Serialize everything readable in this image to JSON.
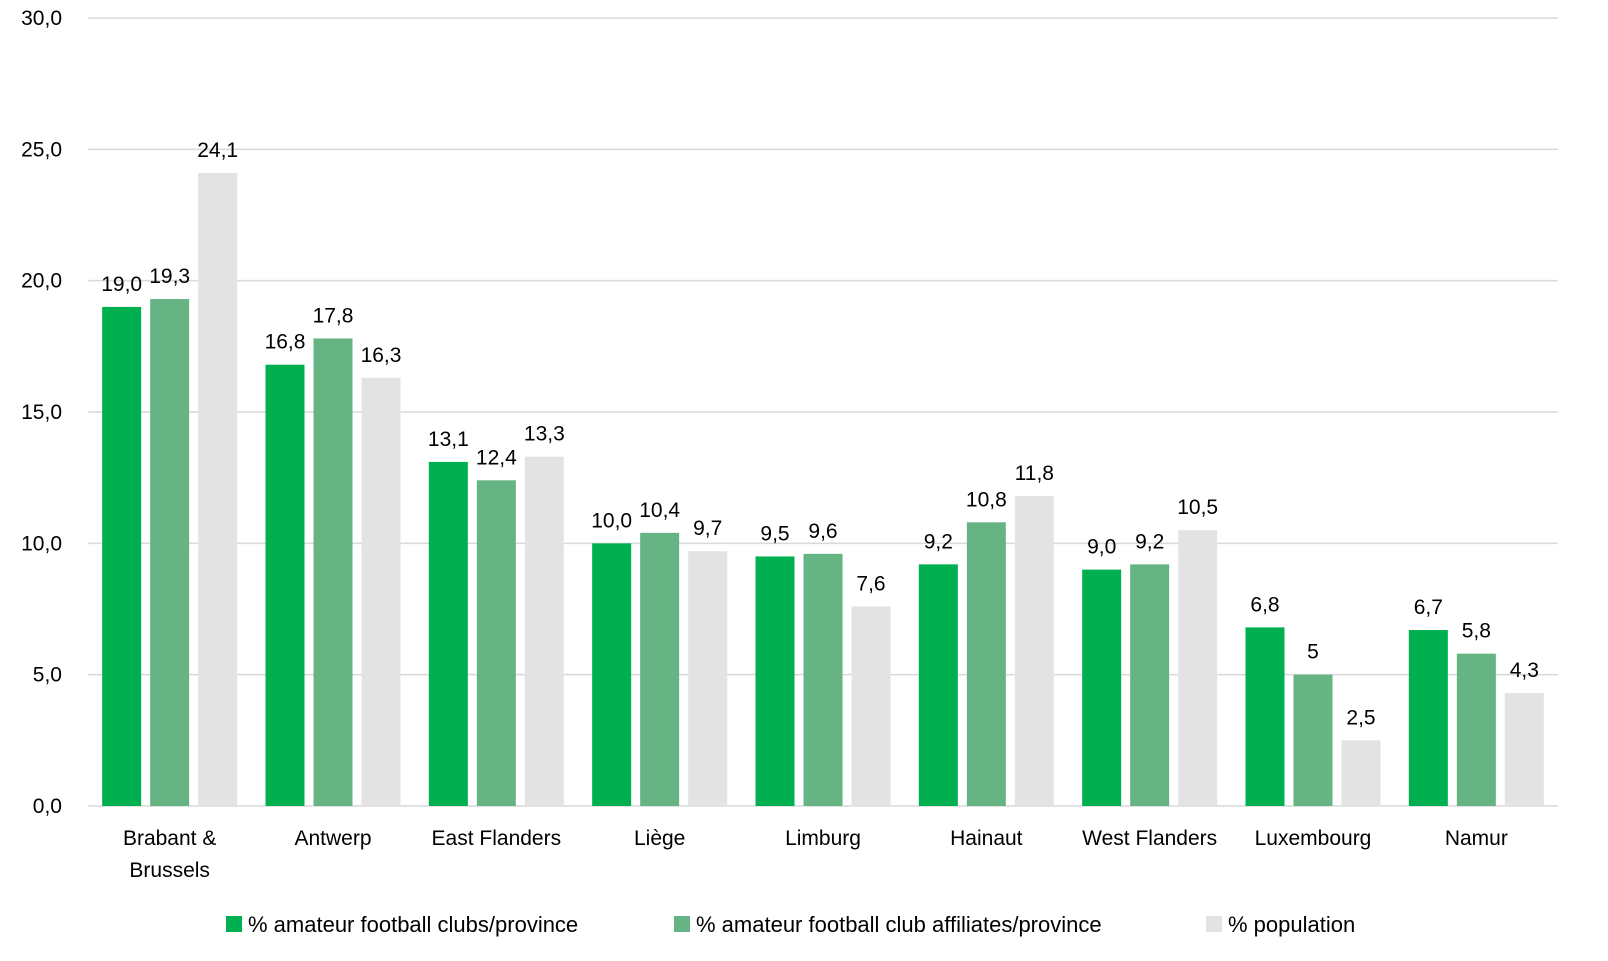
{
  "chart_data": {
    "type": "bar",
    "categories": [
      [
        "Brabant &",
        "Brussels"
      ],
      [
        "Antwerp"
      ],
      [
        "East Flanders"
      ],
      [
        "Liège"
      ],
      [
        "Limburg"
      ],
      [
        "Hainaut"
      ],
      [
        "West Flanders"
      ],
      [
        "Luxembourg"
      ],
      [
        "Namur"
      ]
    ],
    "series": [
      {
        "name": "% amateur football clubs/province",
        "color": "#00b050",
        "values": [
          19.0,
          16.8,
          13.1,
          10.0,
          9.5,
          9.2,
          9.0,
          6.8,
          6.7
        ],
        "labels": [
          "19,0",
          "16,8",
          "13,1",
          "10,0",
          "9,5",
          "9,2",
          "9,0",
          "6,8",
          "6,7"
        ]
      },
      {
        "name": "% amateur football club affiliates/province",
        "color": "#66b383",
        "values": [
          19.3,
          17.8,
          12.4,
          10.4,
          9.6,
          10.8,
          9.2,
          5.0,
          5.8
        ],
        "labels": [
          "19,3",
          "17,8",
          "12,4",
          "10,4",
          "9,6",
          "10,8",
          "9,2",
          "5",
          "5,8"
        ]
      },
      {
        "name": "% population",
        "color": "#e3e3e3",
        "values": [
          24.1,
          16.3,
          13.3,
          9.7,
          7.6,
          11.8,
          10.5,
          2.5,
          4.3
        ],
        "labels": [
          "24,1",
          "16,3",
          "13,3",
          "9,7",
          "7,6",
          "11,8",
          "10,5",
          "2,5",
          "4,3"
        ]
      }
    ],
    "yticks": [
      "0,0",
      "5,0",
      "10,0",
      "15,0",
      "20,0",
      "25,0",
      "30,0"
    ],
    "ylim": [
      0,
      30
    ],
    "grid": true,
    "legend": "bottom"
  }
}
